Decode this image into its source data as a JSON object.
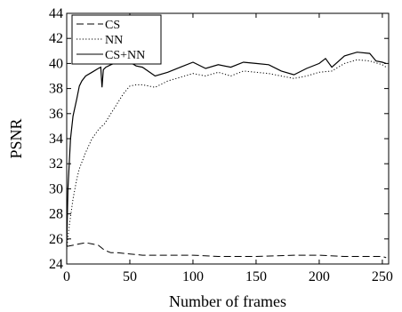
{
  "chart_data": {
    "type": "line",
    "xlabel": "Number of frames",
    "ylabel": "PSNR",
    "xlim": [
      0,
      255
    ],
    "ylim": [
      24,
      44
    ],
    "x_ticks": [
      0,
      50,
      100,
      150,
      200,
      250
    ],
    "y_ticks": [
      24,
      26,
      28,
      30,
      32,
      34,
      36,
      38,
      40,
      42,
      44
    ],
    "grid": false,
    "legend_position": "top-left",
    "series": [
      {
        "name": "CS",
        "line_style": "dashed",
        "color": "#000000",
        "x": [
          0,
          5,
          10,
          15,
          20,
          25,
          30,
          35,
          40,
          50,
          60,
          70,
          80,
          100,
          120,
          150,
          180,
          200,
          220,
          240,
          250,
          253
        ],
        "y": [
          25.4,
          25.5,
          25.6,
          25.7,
          25.6,
          25.5,
          25.1,
          24.9,
          24.9,
          24.8,
          24.7,
          24.7,
          24.7,
          24.7,
          24.6,
          24.6,
          24.7,
          24.7,
          24.6,
          24.6,
          24.6,
          24.5
        ]
      },
      {
        "name": "NN",
        "line_style": "dotted",
        "color": "#000000",
        "x": [
          0,
          2,
          5,
          8,
          10,
          15,
          20,
          25,
          28,
          30,
          35,
          40,
          45,
          50,
          55,
          60,
          70,
          80,
          90,
          100,
          110,
          120,
          130,
          140,
          150,
          160,
          170,
          180,
          190,
          200,
          210,
          220,
          230,
          240,
          250,
          253
        ],
        "y": [
          25.2,
          27.0,
          29.2,
          30.8,
          31.6,
          32.9,
          34.0,
          34.7,
          35.0,
          35.2,
          36.0,
          36.8,
          37.6,
          38.2,
          38.3,
          38.3,
          38.1,
          38.6,
          38.9,
          39.2,
          39.0,
          39.3,
          39.0,
          39.4,
          39.3,
          39.2,
          39.0,
          38.8,
          39.0,
          39.3,
          39.4,
          40.0,
          40.3,
          40.2,
          39.9,
          39.7
        ]
      },
      {
        "name": "CS+NN",
        "line_style": "solid",
        "color": "#000000",
        "x": [
          0,
          1,
          3,
          5,
          8,
          10,
          12,
          15,
          20,
          25,
          27,
          28,
          29,
          31,
          35,
          40,
          45,
          50,
          55,
          60,
          70,
          80,
          90,
          100,
          110,
          120,
          130,
          140,
          150,
          160,
          170,
          180,
          190,
          200,
          205,
          210,
          220,
          230,
          240,
          245,
          250,
          253
        ],
        "y": [
          25.5,
          30.0,
          34.0,
          35.8,
          37.2,
          38.2,
          38.6,
          39.0,
          39.3,
          39.6,
          39.7,
          38.1,
          39.5,
          39.7,
          39.9,
          40.1,
          40.0,
          40.1,
          39.8,
          39.7,
          39.0,
          39.3,
          39.7,
          40.1,
          39.6,
          39.9,
          39.7,
          40.1,
          40.0,
          39.9,
          39.4,
          39.1,
          39.6,
          40.0,
          40.4,
          39.7,
          40.6,
          40.9,
          40.8,
          40.2,
          40.1,
          40.0
        ]
      }
    ]
  }
}
